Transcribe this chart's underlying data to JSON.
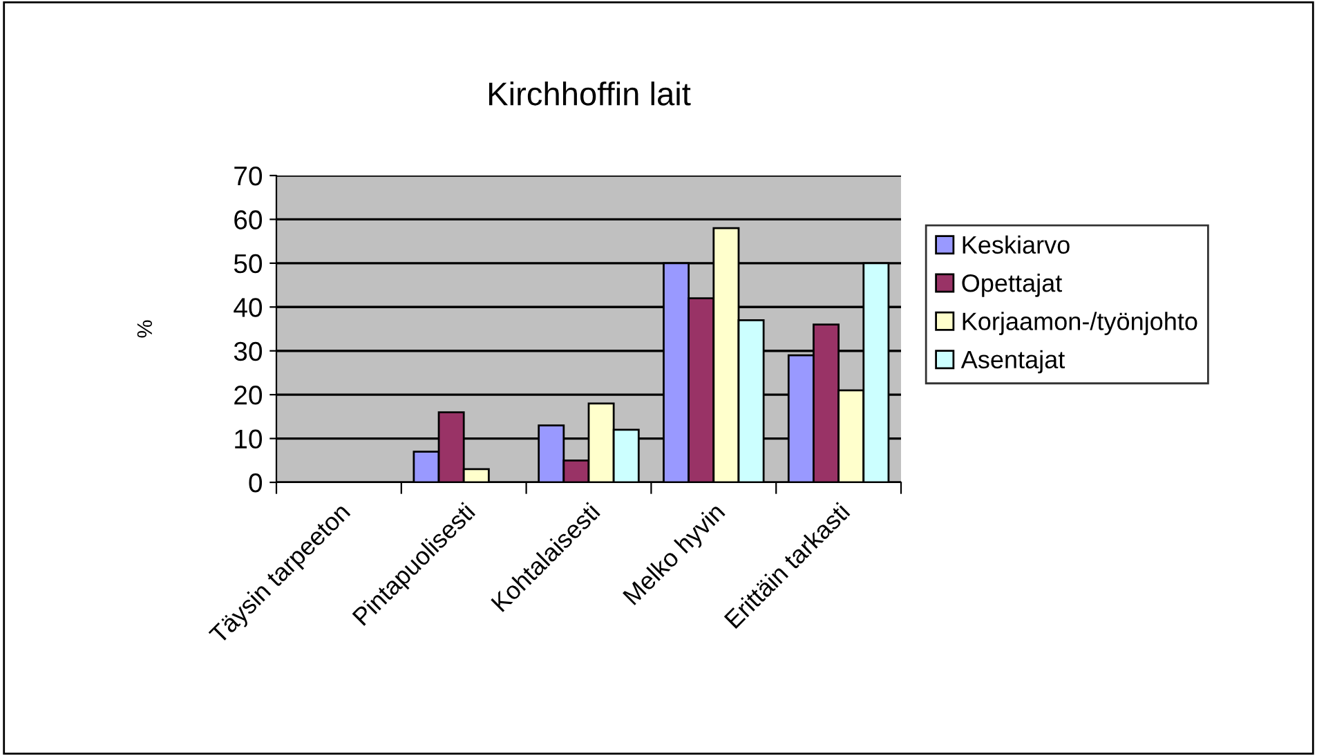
{
  "chart_data": {
    "type": "bar",
    "title": "Kirchhoffin lait",
    "ylabel": "%",
    "categories": [
      "Täysin tarpeeton",
      "Pintapuolisesti",
      "Kohtalaisesti",
      "Melko hyvin",
      "Erittäin tarkasti"
    ],
    "series": [
      {
        "name": "Keskiarvo",
        "color": "#9999ff",
        "values": [
          null,
          7,
          13,
          50,
          29
        ]
      },
      {
        "name": "Opettajat",
        "color": "#993366",
        "values": [
          null,
          16,
          5,
          42,
          36
        ]
      },
      {
        "name": "Korjaamon-/työnjohto",
        "color": "#ffffcc",
        "values": [
          null,
          3,
          18,
          58,
          21
        ]
      },
      {
        "name": "Asentajat",
        "color": "#ccffff",
        "values": [
          null,
          null,
          12,
          37,
          50
        ]
      }
    ],
    "ylim": [
      0,
      70
    ],
    "yticks": [
      0,
      10,
      20,
      30,
      40,
      50,
      60,
      70
    ],
    "grid": "y",
    "legend": "right"
  }
}
